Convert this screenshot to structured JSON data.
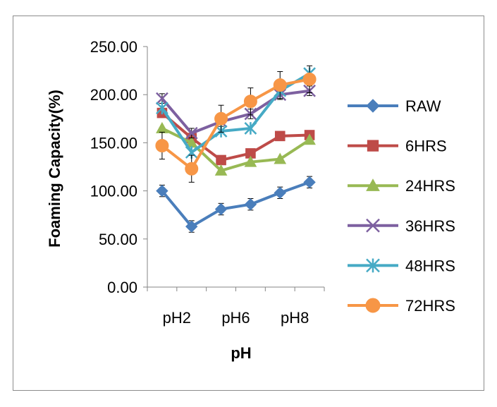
{
  "chart_data": {
    "type": "line",
    "title": "",
    "xlabel": "pH",
    "ylabel": "Foaming Capacity(%)",
    "ylim": [
      0,
      250
    ],
    "y_ticks": [
      "0.00",
      "50.00",
      "100.00",
      "150.00",
      "200.00",
      "250.00"
    ],
    "categories": [
      "pH2",
      "",
      "pH6",
      "",
      "pH8",
      ""
    ],
    "grid": false,
    "legend_position": "right",
    "series": [
      {
        "name": "RAW",
        "color": "#4a7ebb",
        "marker": "diamond",
        "values": [
          100,
          63,
          81,
          86,
          98,
          109
        ],
        "errors": [
          6,
          6,
          6,
          6,
          6,
          6
        ]
      },
      {
        "name": "6HRS",
        "color": "#be4b48",
        "marker": "square",
        "values": [
          181,
          155,
          132,
          139,
          157,
          158
        ],
        "errors": [
          0,
          0,
          0,
          0,
          0,
          0
        ]
      },
      {
        "name": "24HRS",
        "color": "#98b954",
        "marker": "triangle",
        "values": [
          165,
          150,
          121,
          130,
          133,
          153
        ],
        "errors": [
          0,
          0,
          0,
          0,
          0,
          0
        ]
      },
      {
        "name": "36HRS",
        "color": "#7d60a0",
        "marker": "x",
        "values": [
          196,
          160,
          172,
          180,
          200,
          204
        ],
        "errors": [
          5,
          5,
          5,
          5,
          5,
          5
        ]
      },
      {
        "name": "48HRS",
        "color": "#46aac5",
        "marker": "star",
        "values": [
          186,
          140,
          162,
          165,
          204,
          222
        ],
        "errors": [
          0,
          0,
          0,
          0,
          0,
          0
        ]
      },
      {
        "name": "72HRS",
        "color": "#f79646",
        "marker": "circle",
        "values": [
          147,
          123,
          175,
          193,
          210,
          216
        ],
        "errors": [
          14,
          14,
          14,
          14,
          14,
          14
        ]
      }
    ]
  }
}
